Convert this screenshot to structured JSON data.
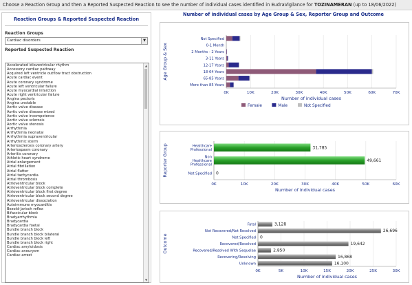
{
  "header": {
    "instruction": "Choose a Reaction Group and then a Reported Suspected Reaction to see the number of individual cases identified in EudraVigilance for ",
    "product": "TOZINAMERAN",
    "date_note": " (up to 18/06/2022)"
  },
  "left_panel": {
    "title": "Reaction Groups & Reported Suspected Reaction",
    "groups_label": "Reaction Groups",
    "selected_group": "Cardiac disorders",
    "reactions_label": "Reported Suspected Reaction",
    "reactions": [
      "Accelerated idioventricular rhythm",
      "Accessory cardiac pathway",
      "Acquired left ventricle outflow tract obstruction",
      "Acute cardiac event",
      "Acute coronary syndrome",
      "Acute left ventricular failure",
      "Acute myocardial infarction",
      "Acute right ventricular failure",
      "Angina pectoris",
      "Angina unstable",
      "Aortic valve disease",
      "Aortic valve disease mixed",
      "Aortic valve incompetence",
      "Aortic valve sclerosis",
      "Aortic valve stenosis",
      "Arrhythmia",
      "Arrhythmia neonatal",
      "Arrhythmia supraventricular",
      "Arrhythmic storm",
      "Arteriosclerosis coronary artery",
      "Arteriospasm coronary",
      "Arteritis coronary",
      "Athletic heart syndrome",
      "Atrial enlargement",
      "Atrial fibrillation",
      "Atrial flutter",
      "Atrial tachycardia",
      "Atrial thrombosis",
      "Atrioventricular block",
      "Atrioventricular block complete",
      "Atrioventricular block first degree",
      "Atrioventricular block second degree",
      "Atrioventricular dissociation",
      "Autoimmune myocarditis",
      "Bezold-Jarisch reflex",
      "Bifascicular block",
      "Bradyarrhythmia",
      "Bradycardia",
      "Bradycardia foetal",
      "Bundle branch block",
      "Bundle branch block bilateral",
      "Bundle branch block left",
      "Bundle branch block right",
      "Cardiac amyloidosis",
      "Cardiac aneurysm",
      "Cardiac arrest"
    ]
  },
  "chart_titles": {
    "main": "Number of individual cases by Age Group & Sex, Reporter Group and Outcome"
  },
  "chart_data": [
    {
      "type": "bar",
      "orientation": "horizontal",
      "stacked": true,
      "categories": [
        "Not Specified",
        "0-1 Month",
        "2 Months - 2 Years",
        "3-11 Years",
        "12-17 Years",
        "18-64 Years",
        "65-85 Years",
        "More than 85 Years"
      ],
      "series": [
        {
          "name": "Female",
          "color": "#8e5a78",
          "values": [
            2500,
            0,
            200,
            400,
            1000,
            37000,
            5000,
            1500
          ]
        },
        {
          "name": "Male",
          "color": "#2a2a8c",
          "values": [
            3000,
            0,
            100,
            300,
            4200,
            23000,
            4500,
            1500
          ]
        },
        {
          "name": "Not Specified",
          "color": "#bfbfbf",
          "values": [
            300,
            0,
            0,
            0,
            100,
            500,
            200,
            100
          ]
        }
      ],
      "xlabel": "Number of individual cases",
      "ylabel": "Age Group & Sex",
      "xlim": [
        0,
        70000
      ],
      "xticks": [
        "0K",
        "10K",
        "20K",
        "30K",
        "40K",
        "50K",
        "60K",
        "70K"
      ],
      "legend_position": "bottom"
    },
    {
      "type": "bar",
      "orientation": "horizontal",
      "categories": [
        "Healthcare Professional",
        "Non Healthcare Professional",
        "Not Specified"
      ],
      "values": [
        31785,
        49661,
        0
      ],
      "value_labels": [
        "31,785",
        "49,661",
        "0"
      ],
      "color": "#2aa12a",
      "xlabel": "Number of individual cases",
      "ylabel": "Reporter Group",
      "xlim": [
        0,
        60000
      ],
      "xticks": [
        "0K",
        "10K",
        "20K",
        "30K",
        "40K",
        "50K",
        "60K"
      ]
    },
    {
      "type": "bar",
      "orientation": "horizontal",
      "categories": [
        "Fatal",
        "Not Recovered/Not Resolved",
        "Not Specified",
        "Recovered/Resolved",
        "Recovered/Resolved With Sequelae",
        "Recovering/Resolving",
        "Unknown"
      ],
      "values": [
        3128,
        26696,
        0,
        19642,
        2850,
        16868,
        16100
      ],
      "value_labels": [
        "3,128",
        "26,696",
        "0",
        "19,642",
        "2,850",
        "16,868",
        "16,100"
      ],
      "color": "#7f7f7f",
      "xlabel": "Number of individual cases",
      "ylabel": "Outcome",
      "xlim": [
        0,
        30000
      ],
      "xticks": [
        "0K",
        "5K",
        "10K",
        "15K",
        "20K",
        "25K",
        "30K"
      ]
    }
  ]
}
